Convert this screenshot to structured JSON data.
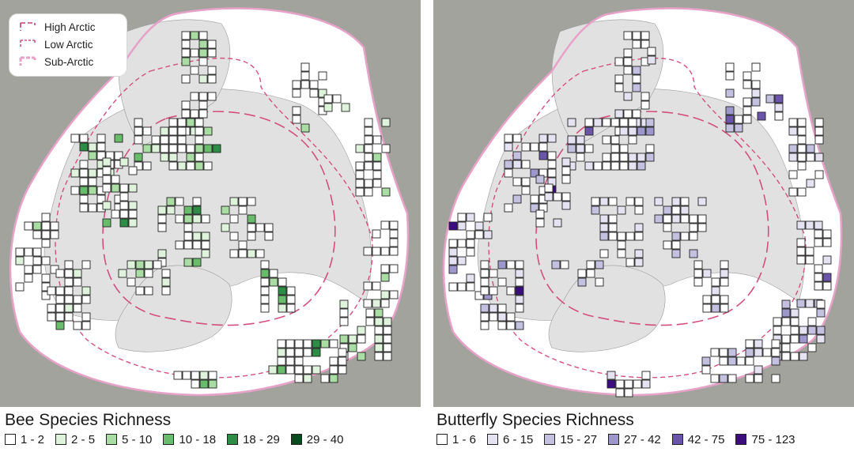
{
  "legend": {
    "zones": [
      {
        "label": "High Arctic",
        "style": "dash-long",
        "color": "#c73e6a"
      },
      {
        "label": "Low Arctic",
        "style": "dash-short",
        "color": "#d2507f"
      },
      {
        "label": "Sub-Arctic",
        "style": "dash-thick",
        "color": "#e7a2c8"
      }
    ]
  },
  "colors": {
    "background": "#a3a39e",
    "land": "#e1e1e1",
    "subarctic_fill": "#ffffff",
    "boundary": "#d2507f",
    "outer_boundary": "#e7a2c8"
  },
  "bee": {
    "title": "Bee Species Richness",
    "classes": [
      {
        "label": "1 - 2",
        "color": "#ffffff"
      },
      {
        "label": "2 - 5",
        "color": "#dff2dc"
      },
      {
        "label": "5 - 10",
        "color": "#a9dda4"
      },
      {
        "label": "10 - 18",
        "color": "#69bc6b"
      },
      {
        "label": "18 - 29",
        "color": "#2d8c45"
      },
      {
        "label": "29 - 40",
        "color": "#0a4a1f"
      }
    ]
  },
  "butterfly": {
    "title": "Butterfly Species Richness",
    "classes": [
      {
        "label": "1 - 6",
        "color": "#ffffff"
      },
      {
        "label": "6 - 15",
        "color": "#e5e3f1"
      },
      {
        "label": "15 - 27",
        "color": "#c3c0e0"
      },
      {
        "label": "27 - 42",
        "color": "#9d97cc"
      },
      {
        "label": "42 - 75",
        "color": "#6a55aa"
      },
      {
        "label": "75 - 123",
        "color": "#3c0d7e"
      }
    ]
  }
}
